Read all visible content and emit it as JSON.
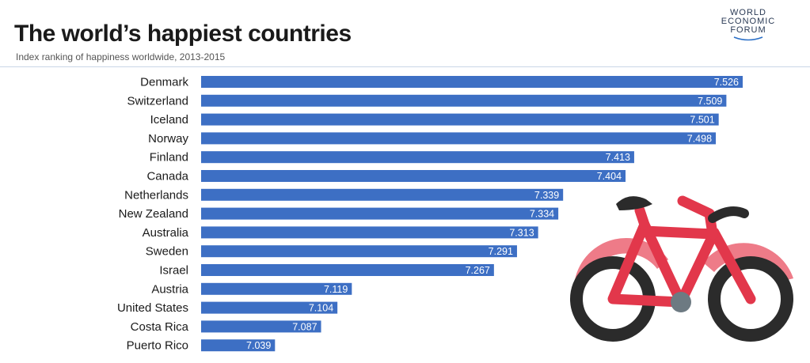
{
  "header": {
    "title": "The world’s happiest countries",
    "subtitle": "Index ranking of happiness worldwide, 2013-2015"
  },
  "logo": {
    "line1": "WORLD",
    "line2": "ECONOMIC",
    "line3": "FORUM"
  },
  "colors": {
    "bar": "#3d6fc4",
    "bar_label": "#ffffff",
    "category_text": "#1a1a1a"
  },
  "chart_data": {
    "type": "bar",
    "orientation": "horizontal",
    "title": "The world’s happiest countries",
    "subtitle": "Index ranking of happiness worldwide, 2013-2015",
    "xlabel": "",
    "ylabel": "",
    "categories": [
      "Denmark",
      "Switzerland",
      "Iceland",
      "Norway",
      "Finland",
      "Canada",
      "Netherlands",
      "New Zealand",
      "Australia",
      "Sweden",
      "Israel",
      "Austria",
      "United States",
      "Costa Rica",
      "Puerto Rico"
    ],
    "values": [
      7.526,
      7.509,
      7.501,
      7.498,
      7.413,
      7.404,
      7.339,
      7.334,
      7.313,
      7.291,
      7.267,
      7.119,
      7.104,
      7.087,
      7.039
    ],
    "data_labels": [
      "7.526",
      "7.509",
      "7.501",
      "7.498",
      "7.413",
      "7.404",
      "7.339",
      "7.334",
      "7.313",
      "7.291",
      "7.267",
      "7.119",
      "7.104",
      "7.087",
      "7.039"
    ],
    "xlim": [
      7.0,
      7.526
    ],
    "grid": false,
    "legend": "none"
  },
  "overlay": {
    "icon": "bicycle-icon",
    "frame_color": "#e2374b",
    "fender_color": "#ee7b88",
    "wheel_color": "#2b2b2b",
    "hub_color": "#6d7a82"
  }
}
